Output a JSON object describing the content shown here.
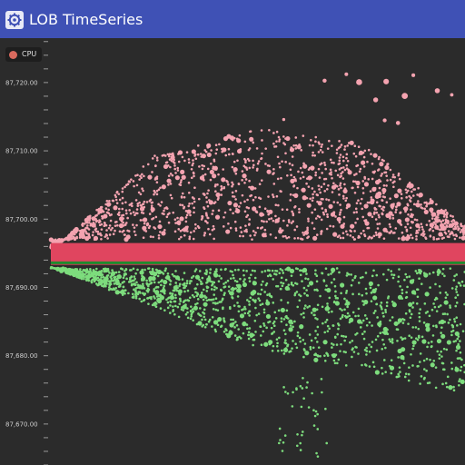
{
  "window": {
    "title": "LOB TimeSeries",
    "icon": "gear-icon",
    "titlebar_color": "#3f51b5"
  },
  "legend": {
    "label": "CPU",
    "color": "#d96a5e"
  },
  "chart_data": {
    "type": "scatter",
    "title": "",
    "xlabel": "",
    "ylabel": "",
    "y_ticks": [
      "87,720.00",
      "87,710.00",
      "87,700.00",
      "87,690.00",
      "87,680.00",
      "87,670.00"
    ],
    "ylim": [
      87664.0,
      87726.5
    ],
    "grid": false,
    "background": "#2b2b2b",
    "colors": {
      "ask": "#f4a3b0",
      "bid": "#7ddc7d",
      "spread_band": "#e0455f",
      "mid_line": "#1f8a2e"
    },
    "series": [
      {
        "role": "ask",
        "x": [
          0.0,
          0.25,
          0.5,
          0.75,
          1.0
        ],
        "y": [
          87695.2,
          87709.3,
          87713.3,
          87711.2,
          87699.1
        ],
        "note": "ask-side order levels"
      },
      {
        "role": "bid",
        "x": [
          0.0,
          0.25,
          0.5,
          0.75,
          1.0
        ],
        "y": [
          87693.0,
          87687.0,
          87681.0,
          87678.0,
          87674.2
        ],
        "note": "bid-side order levels"
      }
    ],
    "spread_band_y": [
      87693.3,
      87696.5
    ],
    "mid_line_y": 87693.6
  }
}
